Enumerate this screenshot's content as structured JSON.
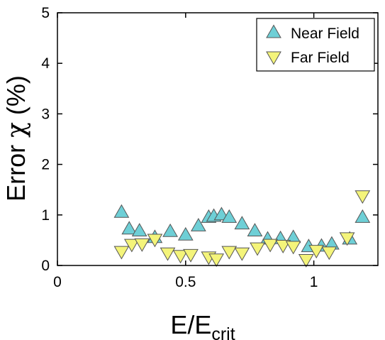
{
  "chart_data": {
    "type": "scatter",
    "xlabel_base": "E/E",
    "xlabel_sub": "crit",
    "ylabel_prefix": "Error ",
    "ylabel_symbol": "χ",
    "ylabel_suffix": " (%)",
    "xlim": [
      0,
      1.25
    ],
    "ylim": [
      0,
      5
    ],
    "xticks": [
      0,
      0.5,
      1
    ],
    "xtick_labels": [
      "0",
      "0.5",
      "1"
    ],
    "yticks": [
      0,
      1,
      2,
      3,
      4,
      5
    ],
    "ytick_labels": [
      "0",
      "1",
      "2",
      "3",
      "4",
      "5"
    ],
    "grid": false,
    "legend_position": "top-right",
    "series": [
      {
        "name": "Near Field",
        "marker": "triangle-up",
        "color": "#6ecfd6",
        "x": [
          0.25,
          0.28,
          0.32,
          0.38,
          0.44,
          0.5,
          0.55,
          0.59,
          0.61,
          0.64,
          0.67,
          0.72,
          0.77,
          0.82,
          0.87,
          0.92,
          0.98,
          1.03,
          1.07,
          1.14,
          1.19
        ],
        "y": [
          1.05,
          0.72,
          0.68,
          0.55,
          0.67,
          0.6,
          0.78,
          0.95,
          0.97,
          1.0,
          0.95,
          0.82,
          0.68,
          0.52,
          0.53,
          0.55,
          0.37,
          0.38,
          0.42,
          0.52,
          0.95
        ]
      },
      {
        "name": "Far Field",
        "marker": "triangle-down",
        "color": "#f4f47a",
        "x": [
          0.25,
          0.29,
          0.33,
          0.38,
          0.43,
          0.48,
          0.52,
          0.59,
          0.62,
          0.67,
          0.72,
          0.78,
          0.83,
          0.88,
          0.92,
          0.97,
          1.01,
          1.06,
          1.13,
          1.19
        ],
        "y": [
          0.28,
          0.42,
          0.43,
          0.52,
          0.25,
          0.2,
          0.22,
          0.17,
          0.13,
          0.28,
          0.25,
          0.35,
          0.42,
          0.4,
          0.38,
          0.12,
          0.3,
          0.27,
          0.55,
          1.38
        ]
      }
    ]
  }
}
